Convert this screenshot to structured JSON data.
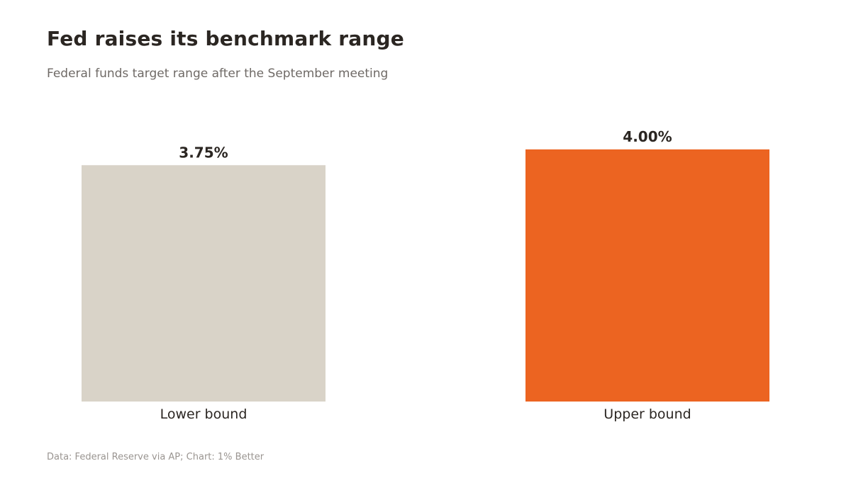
{
  "header": {
    "title": "Fed raises its benchmark range",
    "subtitle": "Federal funds target range after the September meeting"
  },
  "footer": {
    "source": "Data: Federal Reserve via AP; Chart: 1% Better"
  },
  "chart_data": {
    "type": "bar",
    "title": "Fed raises its benchmark range",
    "subtitle": "Federal funds target range after the September meeting",
    "categories": [
      "Lower bound",
      "Upper bound"
    ],
    "values": [
      3.75,
      4.0
    ],
    "value_labels": [
      "3.75%",
      "4.00%"
    ],
    "colors": [
      "#d9d3c8",
      "#ec6421"
    ],
    "ylim": [
      0,
      4.0
    ],
    "grid": false,
    "legend": "none"
  }
}
